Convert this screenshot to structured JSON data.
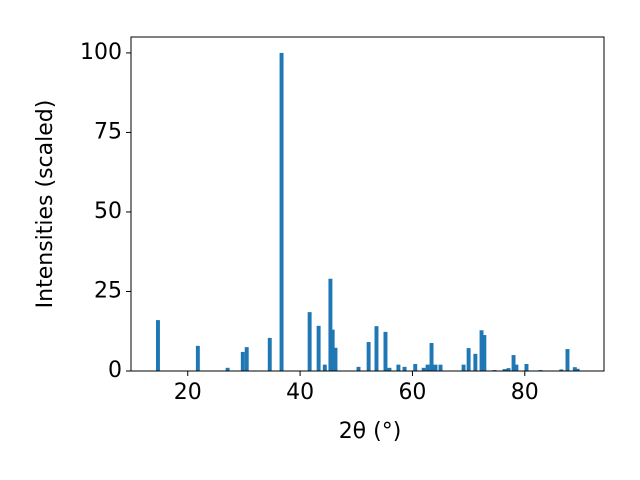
{
  "chart_data": {
    "type": "bar",
    "x_label": "2θ (°)",
    "y_label": "Intensities (scaled)",
    "x": [
      14.7,
      21.8,
      27.1,
      29.8,
      30.5,
      34.6,
      36.7,
      41.7,
      43.3,
      44.4,
      45.4,
      45.8,
      46.3,
      50.4,
      52.2,
      53.6,
      55.2,
      55.9,
      57.5,
      58.6,
      60.5,
      62.0,
      62.7,
      63.4,
      64.1,
      65.0,
      69.1,
      70.0,
      71.2,
      72.3,
      72.8,
      74.6,
      76.4,
      77.1,
      78.0,
      78.5,
      80.3,
      82.8,
      86.5,
      87.6,
      88.9,
      89.4
    ],
    "values": [
      16,
      7.9,
      1,
      6,
      7.5,
      10.4,
      100,
      18.5,
      14.2,
      2,
      29,
      13,
      7.3,
      1.3,
      9.1,
      14.1,
      12.3,
      1,
      2,
      1.3,
      2.2,
      1,
      2,
      8.8,
      2,
      2,
      2,
      7.2,
      5.4,
      12.8,
      11.3,
      0.3,
      0.6,
      0.9,
      5,
      2,
      2.2,
      0.3,
      0.5,
      6.9,
      1.2,
      0.7
    ],
    "color": "#1f77b4",
    "xlim": [
      9.9,
      94.1
    ],
    "ylim": [
      0,
      105
    ],
    "xticks": [
      20,
      40,
      60,
      80
    ],
    "yticks": [
      0,
      25,
      50,
      75,
      100
    ],
    "grid": false
  }
}
